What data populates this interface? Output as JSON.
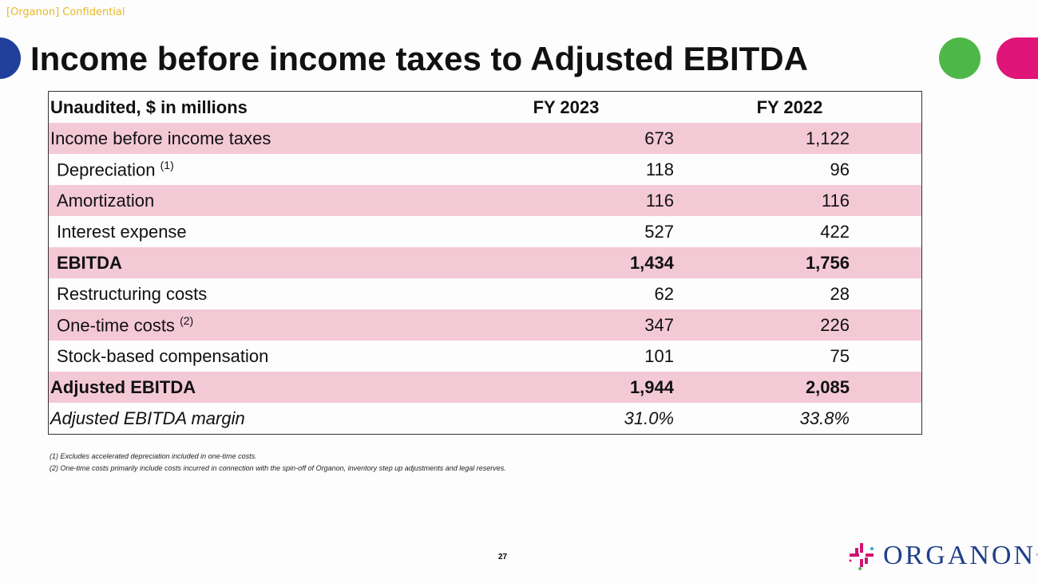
{
  "confidential": "[Organon] Confidential",
  "title": "Income before income taxes to Adjusted EBITDA",
  "table": {
    "headers": [
      "Unaudited, $ in millions",
      "FY 2023",
      "FY 2022"
    ],
    "rows": [
      {
        "label": "Income before income taxes",
        "note": "",
        "fy2023": "673",
        "fy2022": "1,122"
      },
      {
        "label": "Depreciation",
        "note": "(1)",
        "fy2023": "118",
        "fy2022": "96"
      },
      {
        "label": "Amortization",
        "note": "",
        "fy2023": "116",
        "fy2022": "116"
      },
      {
        "label": "Interest expense",
        "note": "",
        "fy2023": "527",
        "fy2022": "422"
      },
      {
        "label": "EBITDA",
        "note": "",
        "fy2023": "1,434",
        "fy2022": "1,756"
      },
      {
        "label": "Restructuring costs",
        "note": "",
        "fy2023": "62",
        "fy2022": "28"
      },
      {
        "label": "One-time costs",
        "note": "(2)",
        "fy2023": "347",
        "fy2022": "226"
      },
      {
        "label": "Stock-based compensation",
        "note": "",
        "fy2023": "101",
        "fy2022": "75"
      },
      {
        "label": "Adjusted EBITDA",
        "note": "",
        "fy2023": "1,944",
        "fy2022": "2,085"
      },
      {
        "label": "Adjusted EBITDA margin",
        "note": "",
        "fy2023": "31.0%",
        "fy2022": "33.8%"
      }
    ]
  },
  "footnotes": [
    "(1) Excludes accelerated depreciation included in one-time costs.",
    "(2) One-time costs primarily include costs incurred in connection with the spin-off of Organon, inventory step up adjustments and legal reserves."
  ],
  "page_number": "27",
  "logo": {
    "text": "ORGANON",
    "tm": "™"
  },
  "colors": {
    "pink_row": "#f4c9d6",
    "blue": "#1f3f9a",
    "green": "#4db848",
    "magenta": "#e0157a"
  }
}
